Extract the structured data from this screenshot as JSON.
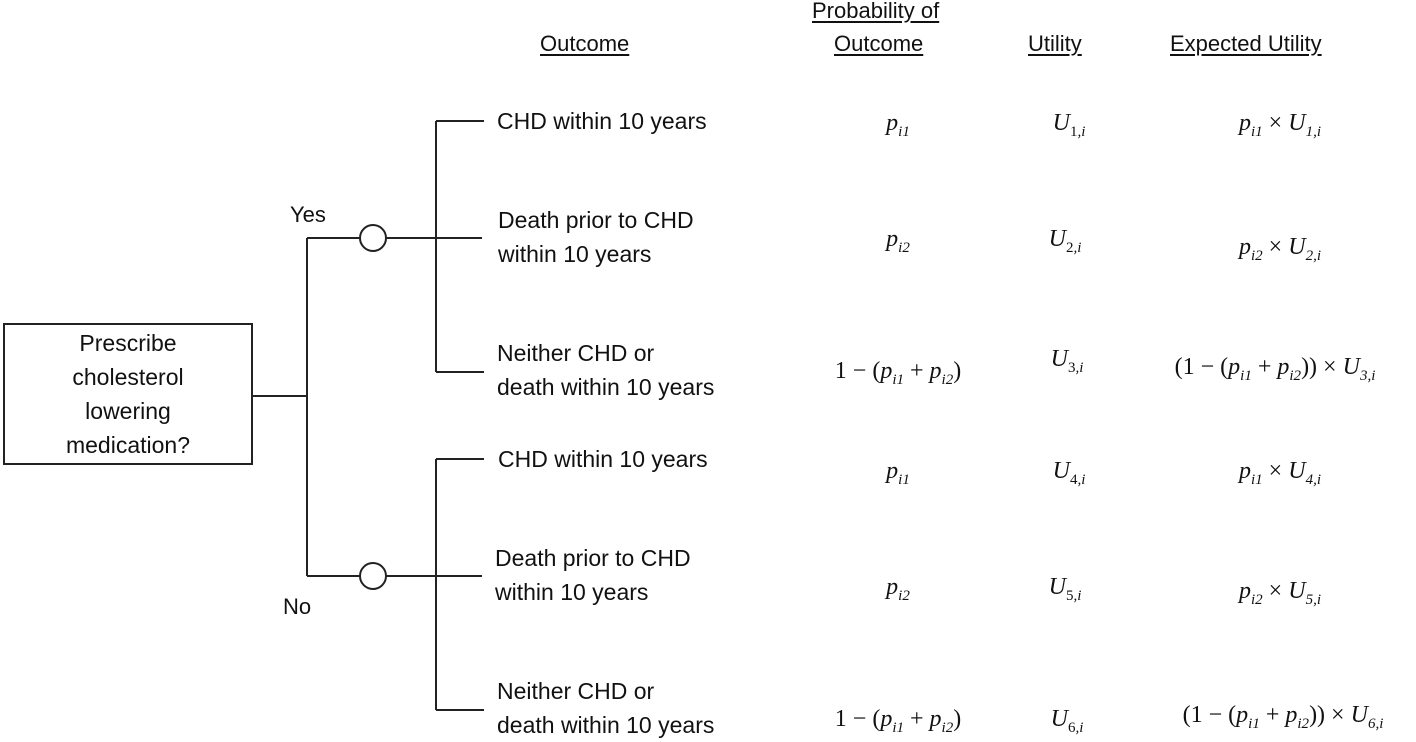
{
  "headers": {
    "outcome": "Outcome",
    "probability_line1": "Probability of",
    "probability_line2": "Outcome",
    "utility": "Utility",
    "expected_utility": "Expected Utility"
  },
  "decision": {
    "label": "Prescribe\ncholesterol\nlowering\nmedication?"
  },
  "branches": {
    "yes": "Yes",
    "no": "No"
  },
  "rows": [
    {
      "outcome_line1": "CHD within 10 years",
      "outcome_line2": "",
      "prob": "p_i1",
      "utility_index": "1",
      "expected": "p_i1 × U_1,i"
    },
    {
      "outcome_line1": "Death prior to CHD",
      "outcome_line2": "within 10 years",
      "prob": "p_i2",
      "utility_index": "2",
      "expected": "p_i2 × U_2,i"
    },
    {
      "outcome_line1": "Neither CHD or",
      "outcome_line2": "death within 10 years",
      "prob": "1 − (p_i1 + p_i2)",
      "utility_index": "3",
      "expected": "(1 − (p_i1 + p_i2)) × U_3,i"
    },
    {
      "outcome_line1": "CHD within 10 years",
      "outcome_line2": "",
      "prob": "p_i1",
      "utility_index": "4",
      "expected": "p_i1 × U_4,i"
    },
    {
      "outcome_line1": "Death prior to CHD",
      "outcome_line2": "within 10 years",
      "prob": "p_i2",
      "utility_index": "5",
      "expected": "p_i2 × U_5,i"
    },
    {
      "outcome_line1": "Neither CHD or",
      "outcome_line2": "death within 10 years",
      "prob": "1 − (p_i1 + p_i2)",
      "utility_index": "6",
      "expected": "(1 − (p_i1 + p_i2)) × U_6,i"
    }
  ],
  "colors": {
    "line": "#222222",
    "text": "#111111",
    "background": "#ffffff"
  }
}
